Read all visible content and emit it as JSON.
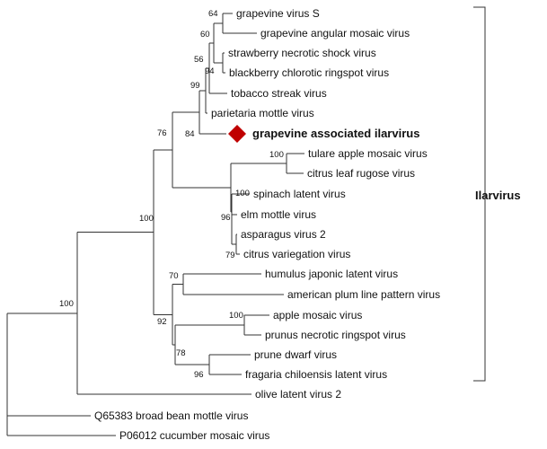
{
  "tree": {
    "clade_label": "Ilarvirus",
    "highlight_color": "#c00000",
    "highlight_marker": "diamond-icon",
    "taxa": [
      {
        "id": "gvs",
        "label": "grapevine virus S",
        "bold": false
      },
      {
        "id": "gamv",
        "label": "grapevine angular mosaic virus",
        "bold": false
      },
      {
        "id": "snsv",
        "label": "strawberry necrotic shock virus",
        "bold": false
      },
      {
        "id": "bcrv",
        "label": "blackberry chlorotic ringspot virus",
        "bold": false
      },
      {
        "id": "tsv",
        "label": "tobacco streak virus",
        "bold": false
      },
      {
        "id": "pmov",
        "label": "parietaria mottle virus",
        "bold": false
      },
      {
        "id": "gaiv",
        "label": "grapevine associated ilarvirus",
        "bold": true
      },
      {
        "id": "tamv",
        "label": "tulare apple mosaic virus",
        "bold": false
      },
      {
        "id": "clrv",
        "label": "citrus leaf rugose virus",
        "bold": false
      },
      {
        "id": "slv",
        "label": "spinach latent virus",
        "bold": false
      },
      {
        "id": "emov",
        "label": "elm mottle virus",
        "bold": false
      },
      {
        "id": "av2",
        "label": "asparagus virus 2",
        "bold": false
      },
      {
        "id": "cvv",
        "label": "citrus variegation virus",
        "bold": false
      },
      {
        "id": "hjlv",
        "label": "humulus japonic latent virus",
        "bold": false
      },
      {
        "id": "aplpv",
        "label": "american plum line pattern virus",
        "bold": false
      },
      {
        "id": "apmv",
        "label": "apple mosaic virus",
        "bold": false
      },
      {
        "id": "pnrsv",
        "label": "prunus necrotic ringspot virus",
        "bold": false
      },
      {
        "id": "pdv",
        "label": "prune dwarf virus",
        "bold": false
      },
      {
        "id": "fclv",
        "label": "fragaria chiloensis latent virus",
        "bold": false
      },
      {
        "id": "olv2",
        "label": "olive latent virus 2",
        "bold": false
      },
      {
        "id": "bbmv",
        "label": "Q65383 broad bean mottle virus",
        "bold": false
      },
      {
        "id": "cmv",
        "label": "P06012 cucumber mosaic virus",
        "bold": false
      }
    ],
    "bootstrap": [
      {
        "node": "n_gvs",
        "value": "64"
      },
      {
        "node": "n_gv",
        "value": "60"
      },
      {
        "node": "n_rub",
        "value": "94"
      },
      {
        "node": "n_g1",
        "value": "56"
      },
      {
        "node": "n_g2",
        "value": "99"
      },
      {
        "node": "n_g3",
        "value": "84"
      },
      {
        "node": "n_tc",
        "value": "100"
      },
      {
        "node": "n_sub",
        "value": "100"
      },
      {
        "node": "n_ec",
        "value": "79"
      },
      {
        "node": "n_eac",
        "value": "96"
      },
      {
        "node": "n_A",
        "value": "76"
      },
      {
        "node": "n_ha",
        "value": "70"
      },
      {
        "node": "n_ap",
        "value": "100"
      },
      {
        "node": "n_pf",
        "value": "96"
      },
      {
        "node": "n_appf",
        "value": "78"
      },
      {
        "node": "n_C",
        "value": "92"
      },
      {
        "node": "n_D",
        "value": "100"
      },
      {
        "node": "n_E",
        "value": "100"
      }
    ]
  }
}
